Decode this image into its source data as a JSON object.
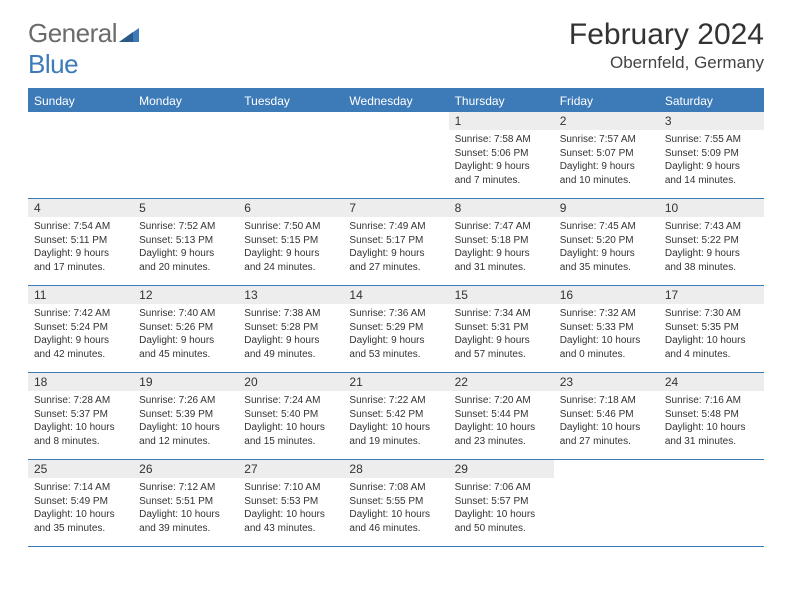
{
  "logo": {
    "general": "General",
    "blue": "Blue"
  },
  "title": "February 2024",
  "location": "Obernfeld, Germany",
  "colors": {
    "header_bg": "#3d7ab8",
    "header_text": "#ffffff",
    "daynum_bg": "#ededed",
    "text": "#333333",
    "border": "#3d7ab8",
    "logo_gray": "#6b6b6b",
    "logo_blue": "#3d7ab8"
  },
  "day_names": [
    "Sunday",
    "Monday",
    "Tuesday",
    "Wednesday",
    "Thursday",
    "Friday",
    "Saturday"
  ],
  "weeks": [
    [
      null,
      null,
      null,
      null,
      {
        "n": "1",
        "sr": "Sunrise: 7:58 AM",
        "ss": "Sunset: 5:06 PM",
        "d1": "Daylight: 9 hours",
        "d2": "and 7 minutes."
      },
      {
        "n": "2",
        "sr": "Sunrise: 7:57 AM",
        "ss": "Sunset: 5:07 PM",
        "d1": "Daylight: 9 hours",
        "d2": "and 10 minutes."
      },
      {
        "n": "3",
        "sr": "Sunrise: 7:55 AM",
        "ss": "Sunset: 5:09 PM",
        "d1": "Daylight: 9 hours",
        "d2": "and 14 minutes."
      }
    ],
    [
      {
        "n": "4",
        "sr": "Sunrise: 7:54 AM",
        "ss": "Sunset: 5:11 PM",
        "d1": "Daylight: 9 hours",
        "d2": "and 17 minutes."
      },
      {
        "n": "5",
        "sr": "Sunrise: 7:52 AM",
        "ss": "Sunset: 5:13 PM",
        "d1": "Daylight: 9 hours",
        "d2": "and 20 minutes."
      },
      {
        "n": "6",
        "sr": "Sunrise: 7:50 AM",
        "ss": "Sunset: 5:15 PM",
        "d1": "Daylight: 9 hours",
        "d2": "and 24 minutes."
      },
      {
        "n": "7",
        "sr": "Sunrise: 7:49 AM",
        "ss": "Sunset: 5:17 PM",
        "d1": "Daylight: 9 hours",
        "d2": "and 27 minutes."
      },
      {
        "n": "8",
        "sr": "Sunrise: 7:47 AM",
        "ss": "Sunset: 5:18 PM",
        "d1": "Daylight: 9 hours",
        "d2": "and 31 minutes."
      },
      {
        "n": "9",
        "sr": "Sunrise: 7:45 AM",
        "ss": "Sunset: 5:20 PM",
        "d1": "Daylight: 9 hours",
        "d2": "and 35 minutes."
      },
      {
        "n": "10",
        "sr": "Sunrise: 7:43 AM",
        "ss": "Sunset: 5:22 PM",
        "d1": "Daylight: 9 hours",
        "d2": "and 38 minutes."
      }
    ],
    [
      {
        "n": "11",
        "sr": "Sunrise: 7:42 AM",
        "ss": "Sunset: 5:24 PM",
        "d1": "Daylight: 9 hours",
        "d2": "and 42 minutes."
      },
      {
        "n": "12",
        "sr": "Sunrise: 7:40 AM",
        "ss": "Sunset: 5:26 PM",
        "d1": "Daylight: 9 hours",
        "d2": "and 45 minutes."
      },
      {
        "n": "13",
        "sr": "Sunrise: 7:38 AM",
        "ss": "Sunset: 5:28 PM",
        "d1": "Daylight: 9 hours",
        "d2": "and 49 minutes."
      },
      {
        "n": "14",
        "sr": "Sunrise: 7:36 AM",
        "ss": "Sunset: 5:29 PM",
        "d1": "Daylight: 9 hours",
        "d2": "and 53 minutes."
      },
      {
        "n": "15",
        "sr": "Sunrise: 7:34 AM",
        "ss": "Sunset: 5:31 PM",
        "d1": "Daylight: 9 hours",
        "d2": "and 57 minutes."
      },
      {
        "n": "16",
        "sr": "Sunrise: 7:32 AM",
        "ss": "Sunset: 5:33 PM",
        "d1": "Daylight: 10 hours",
        "d2": "and 0 minutes."
      },
      {
        "n": "17",
        "sr": "Sunrise: 7:30 AM",
        "ss": "Sunset: 5:35 PM",
        "d1": "Daylight: 10 hours",
        "d2": "and 4 minutes."
      }
    ],
    [
      {
        "n": "18",
        "sr": "Sunrise: 7:28 AM",
        "ss": "Sunset: 5:37 PM",
        "d1": "Daylight: 10 hours",
        "d2": "and 8 minutes."
      },
      {
        "n": "19",
        "sr": "Sunrise: 7:26 AM",
        "ss": "Sunset: 5:39 PM",
        "d1": "Daylight: 10 hours",
        "d2": "and 12 minutes."
      },
      {
        "n": "20",
        "sr": "Sunrise: 7:24 AM",
        "ss": "Sunset: 5:40 PM",
        "d1": "Daylight: 10 hours",
        "d2": "and 15 minutes."
      },
      {
        "n": "21",
        "sr": "Sunrise: 7:22 AM",
        "ss": "Sunset: 5:42 PM",
        "d1": "Daylight: 10 hours",
        "d2": "and 19 minutes."
      },
      {
        "n": "22",
        "sr": "Sunrise: 7:20 AM",
        "ss": "Sunset: 5:44 PM",
        "d1": "Daylight: 10 hours",
        "d2": "and 23 minutes."
      },
      {
        "n": "23",
        "sr": "Sunrise: 7:18 AM",
        "ss": "Sunset: 5:46 PM",
        "d1": "Daylight: 10 hours",
        "d2": "and 27 minutes."
      },
      {
        "n": "24",
        "sr": "Sunrise: 7:16 AM",
        "ss": "Sunset: 5:48 PM",
        "d1": "Daylight: 10 hours",
        "d2": "and 31 minutes."
      }
    ],
    [
      {
        "n": "25",
        "sr": "Sunrise: 7:14 AM",
        "ss": "Sunset: 5:49 PM",
        "d1": "Daylight: 10 hours",
        "d2": "and 35 minutes."
      },
      {
        "n": "26",
        "sr": "Sunrise: 7:12 AM",
        "ss": "Sunset: 5:51 PM",
        "d1": "Daylight: 10 hours",
        "d2": "and 39 minutes."
      },
      {
        "n": "27",
        "sr": "Sunrise: 7:10 AM",
        "ss": "Sunset: 5:53 PM",
        "d1": "Daylight: 10 hours",
        "d2": "and 43 minutes."
      },
      {
        "n": "28",
        "sr": "Sunrise: 7:08 AM",
        "ss": "Sunset: 5:55 PM",
        "d1": "Daylight: 10 hours",
        "d2": "and 46 minutes."
      },
      {
        "n": "29",
        "sr": "Sunrise: 7:06 AM",
        "ss": "Sunset: 5:57 PM",
        "d1": "Daylight: 10 hours",
        "d2": "and 50 minutes."
      },
      null,
      null
    ]
  ]
}
